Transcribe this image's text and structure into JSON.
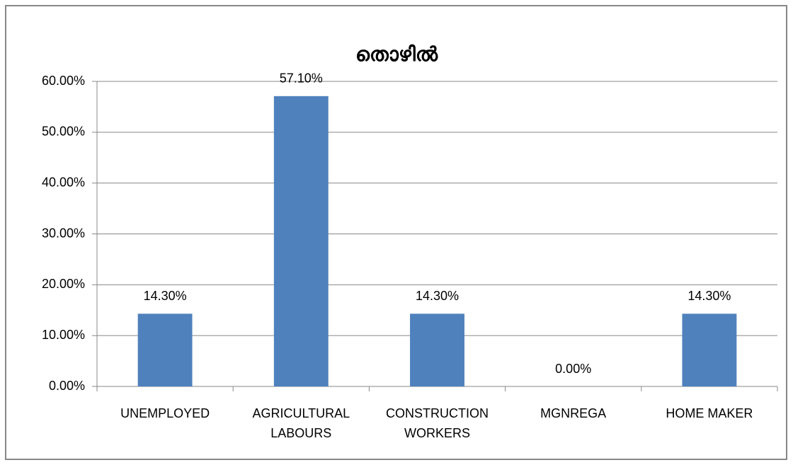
{
  "chart_data": {
    "type": "bar",
    "title": "തൊഴിൽ",
    "categories": [
      "UNEMPLOYED",
      "AGRICULTURAL LABOURS",
      "CONSTRUCTION WORKERS",
      "MGNREGA",
      "HOME MAKER"
    ],
    "values": [
      14.3,
      57.1,
      14.3,
      0,
      14.3
    ],
    "value_labels": [
      "14.30%",
      "57.10%",
      "14.30%",
      "0.00%",
      "14.30%"
    ],
    "color": "#4f81bd",
    "ylim": [
      0,
      60
    ],
    "yticks": [
      {
        "value": 0,
        "label": "0.00%"
      },
      {
        "value": 10,
        "label": "10.00%"
      },
      {
        "value": 20,
        "label": "20.00%"
      },
      {
        "value": 30,
        "label": "30.00%"
      },
      {
        "value": 40,
        "label": "40.00%"
      },
      {
        "value": 50,
        "label": "50.00%"
      },
      {
        "value": 60,
        "label": "60.00%"
      }
    ],
    "grid": true
  }
}
